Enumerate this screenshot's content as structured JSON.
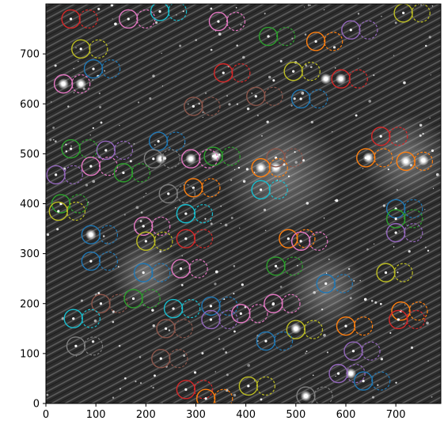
{
  "chart_data": {
    "type": "scatter",
    "title": "",
    "xlabel": "",
    "ylabel": "",
    "xlim": [
      0,
      790
    ],
    "ylim": [
      0,
      800
    ],
    "x_ticks": [
      0,
      100,
      200,
      300,
      400,
      500,
      600,
      700
    ],
    "y_ticks": [
      0,
      100,
      200,
      300,
      400,
      500,
      600,
      700
    ],
    "grid": false,
    "legend": "none",
    "background": "grayscale star field image",
    "marker_style": "pairs of open circles: solid circle = detected source, dashed circle = matched counterpart (offset ~ +35 in x)",
    "colors": [
      "#1f77b4",
      "#ff7f0e",
      "#2ca02c",
      "#d62728",
      "#9467bd",
      "#8c564b",
      "#e377c2",
      "#7f7f7f",
      "#bcbd22",
      "#17becf"
    ],
    "pairs": [
      {
        "x": 50,
        "y": 770,
        "color": "#d62728"
      },
      {
        "x": 165,
        "y": 770,
        "color": "#e377c2"
      },
      {
        "x": 228,
        "y": 785,
        "color": "#17becf"
      },
      {
        "x": 345,
        "y": 765,
        "color": "#e377c2"
      },
      {
        "x": 715,
        "y": 782,
        "color": "#bcbd22"
      },
      {
        "x": 445,
        "y": 735,
        "color": "#2ca02c"
      },
      {
        "x": 540,
        "y": 725,
        "color": "#ff7f0e"
      },
      {
        "x": 610,
        "y": 748,
        "color": "#9467bd"
      },
      {
        "x": 70,
        "y": 710,
        "color": "#bcbd22"
      },
      {
        "x": 95,
        "y": 670,
        "color": "#1f77b4"
      },
      {
        "x": 355,
        "y": 662,
        "color": "#d62728"
      },
      {
        "x": 495,
        "y": 665,
        "color": "#bcbd22"
      },
      {
        "x": 590,
        "y": 650,
        "color": "#d62728"
      },
      {
        "x": 35,
        "y": 640,
        "color": "#e377c2"
      },
      {
        "x": 420,
        "y": 615,
        "color": "#8c564b"
      },
      {
        "x": 510,
        "y": 610,
        "color": "#1f77b4"
      },
      {
        "x": 295,
        "y": 595,
        "color": "#8c564b"
      },
      {
        "x": 670,
        "y": 535,
        "color": "#d62728"
      },
      {
        "x": 50,
        "y": 510,
        "color": "#2ca02c"
      },
      {
        "x": 120,
        "y": 507,
        "color": "#9467bd"
      },
      {
        "x": 225,
        "y": 525,
        "color": "#1f77b4"
      },
      {
        "x": 335,
        "y": 495,
        "color": "#2ca02c"
      },
      {
        "x": 460,
        "y": 492,
        "color": "#8c564b"
      },
      {
        "x": 640,
        "y": 492,
        "color": "#ff7f0e"
      },
      {
        "x": 720,
        "y": 485,
        "color": "#ff7f0e"
      },
      {
        "x": 215,
        "y": 490,
        "color": "#7f7f7f"
      },
      {
        "x": 290,
        "y": 490,
        "color": "#e377c2"
      },
      {
        "x": 90,
        "y": 475,
        "color": "#e377c2"
      },
      {
        "x": 155,
        "y": 462,
        "color": "#2ca02c"
      },
      {
        "x": 20,
        "y": 458,
        "color": "#9467bd"
      },
      {
        "x": 430,
        "y": 472,
        "color": "#ff7f0e"
      },
      {
        "x": 295,
        "y": 432,
        "color": "#ff7f0e"
      },
      {
        "x": 430,
        "y": 428,
        "color": "#17becf"
      },
      {
        "x": 245,
        "y": 420,
        "color": "#7f7f7f"
      },
      {
        "x": 30,
        "y": 400,
        "color": "#2ca02c"
      },
      {
        "x": 25,
        "y": 385,
        "color": "#bcbd22"
      },
      {
        "x": 280,
        "y": 380,
        "color": "#17becf"
      },
      {
        "x": 700,
        "y": 390,
        "color": "#1f77b4"
      },
      {
        "x": 700,
        "y": 370,
        "color": "#2ca02c"
      },
      {
        "x": 195,
        "y": 355,
        "color": "#e377c2"
      },
      {
        "x": 90,
        "y": 338,
        "color": "#1f77b4"
      },
      {
        "x": 700,
        "y": 342,
        "color": "#9467bd"
      },
      {
        "x": 200,
        "y": 325,
        "color": "#bcbd22"
      },
      {
        "x": 280,
        "y": 330,
        "color": "#d62728"
      },
      {
        "x": 485,
        "y": 330,
        "color": "#ff7f0e"
      },
      {
        "x": 510,
        "y": 325,
        "color": "#e377c2"
      },
      {
        "x": 90,
        "y": 285,
        "color": "#1f77b4"
      },
      {
        "x": 460,
        "y": 275,
        "color": "#2ca02c"
      },
      {
        "x": 270,
        "y": 270,
        "color": "#e377c2"
      },
      {
        "x": 195,
        "y": 262,
        "color": "#1f77b4"
      },
      {
        "x": 680,
        "y": 262,
        "color": "#bcbd22"
      },
      {
        "x": 560,
        "y": 240,
        "color": "#1f77b4"
      },
      {
        "x": 110,
        "y": 200,
        "color": "#8c564b"
      },
      {
        "x": 175,
        "y": 210,
        "color": "#2ca02c"
      },
      {
        "x": 255,
        "y": 190,
        "color": "#17becf"
      },
      {
        "x": 330,
        "y": 195,
        "color": "#1f77b4"
      },
      {
        "x": 390,
        "y": 180,
        "color": "#e377c2"
      },
      {
        "x": 455,
        "y": 200,
        "color": "#e377c2"
      },
      {
        "x": 710,
        "y": 185,
        "color": "#ff7f0e"
      },
      {
        "x": 55,
        "y": 170,
        "color": "#17becf"
      },
      {
        "x": 330,
        "y": 168,
        "color": "#9467bd"
      },
      {
        "x": 240,
        "y": 150,
        "color": "#8c564b"
      },
      {
        "x": 500,
        "y": 148,
        "color": "#bcbd22"
      },
      {
        "x": 600,
        "y": 155,
        "color": "#ff7f0e"
      },
      {
        "x": 705,
        "y": 168,
        "color": "#d62728"
      },
      {
        "x": 440,
        "y": 125,
        "color": "#1f77b4"
      },
      {
        "x": 60,
        "y": 115,
        "color": "#7f7f7f"
      },
      {
        "x": 615,
        "y": 105,
        "color": "#9467bd"
      },
      {
        "x": 230,
        "y": 90,
        "color": "#8c564b"
      },
      {
        "x": 585,
        "y": 60,
        "color": "#9467bd"
      },
      {
        "x": 635,
        "y": 45,
        "color": "#1f77b4"
      },
      {
        "x": 405,
        "y": 35,
        "color": "#bcbd22"
      },
      {
        "x": 280,
        "y": 28,
        "color": "#d62728"
      },
      {
        "x": 320,
        "y": 10,
        "color": "#ff7f0e"
      },
      {
        "x": 520,
        "y": 15,
        "color": "#7f7f7f"
      }
    ],
    "bright_stars": [
      {
        "x": 35,
        "y": 640
      },
      {
        "x": 70,
        "y": 640
      },
      {
        "x": 720,
        "y": 485
      },
      {
        "x": 755,
        "y": 487
      },
      {
        "x": 645,
        "y": 492
      },
      {
        "x": 430,
        "y": 472
      },
      {
        "x": 90,
        "y": 338
      },
      {
        "x": 560,
        "y": 650
      },
      {
        "x": 590,
        "y": 650
      },
      {
        "x": 520,
        "y": 15
      },
      {
        "x": 290,
        "y": 490
      },
      {
        "x": 230,
        "y": 490
      },
      {
        "x": 610,
        "y": 60
      },
      {
        "x": 500,
        "y": 150
      },
      {
        "x": 460,
        "y": 472
      },
      {
        "x": 340,
        "y": 495
      }
    ]
  }
}
